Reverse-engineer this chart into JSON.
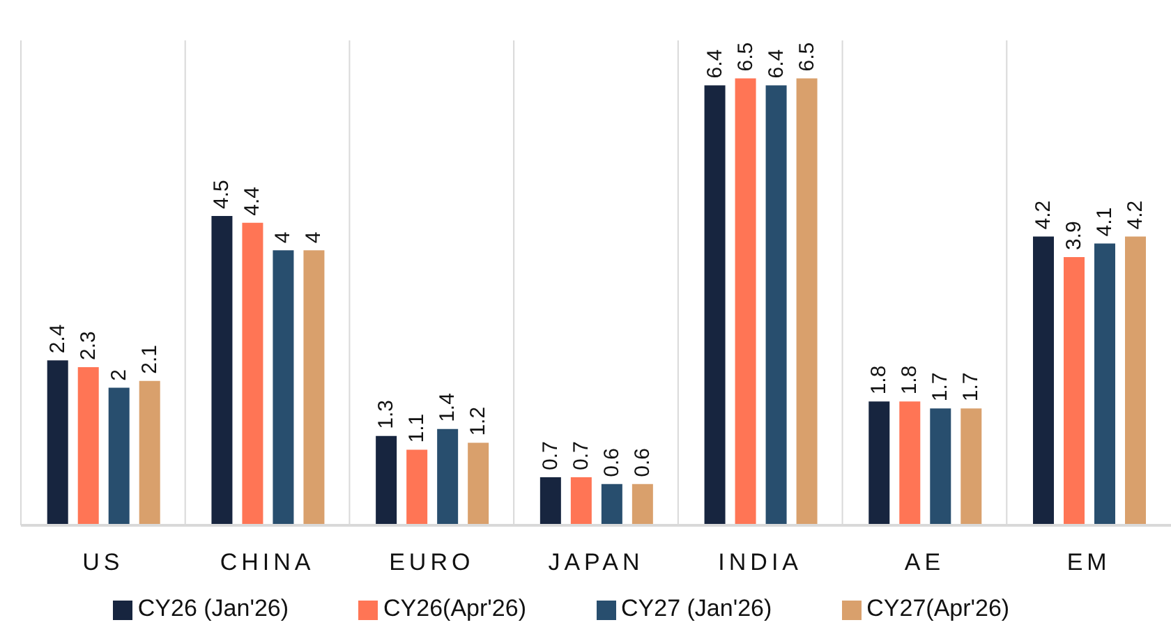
{
  "chart_data": {
    "type": "bar",
    "categories": [
      "US",
      "CHINA",
      "EURO",
      "JAPAN",
      "INDIA",
      "AE",
      "EM"
    ],
    "series": [
      {
        "name": "CY26 (Jan'26)",
        "color": "#17253f",
        "values": [
          2.4,
          4.5,
          1.3,
          0.7,
          6.4,
          1.8,
          4.2
        ]
      },
      {
        "name": "CY26(Apr'26)",
        "color": "#ff7555",
        "values": [
          2.3,
          4.4,
          1.1,
          0.7,
          6.5,
          1.8,
          3.9
        ]
      },
      {
        "name": "CY27 (Jan'26)",
        "color": "#284e6e",
        "values": [
          2,
          4,
          1.4,
          0.6,
          6.4,
          1.7,
          4.1
        ]
      },
      {
        "name": "CY27(Apr'26)",
        "color": "#d9a06c",
        "values": [
          2.1,
          4,
          1.2,
          0.6,
          6.5,
          1.7,
          4.2
        ]
      }
    ],
    "data_labels": true,
    "grid": "x",
    "legend": "bottom"
  }
}
